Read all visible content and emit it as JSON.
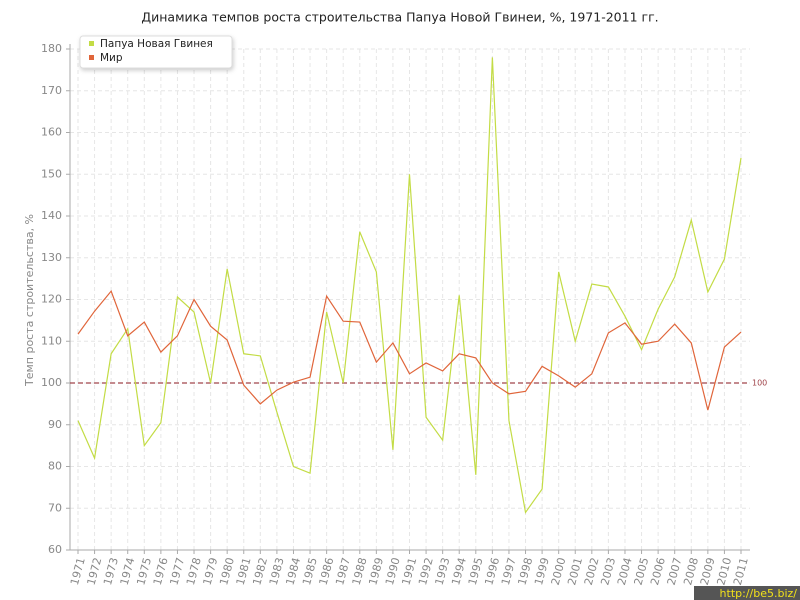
{
  "chart_data": {
    "type": "line",
    "title": "Динамика темпов роста строительства Папуа Новой Гвинеи, %, 1971-2011 гг.",
    "y_label": "Темп роста строительства, %",
    "categories": [
      "1971",
      "1972",
      "1973",
      "1974",
      "1975",
      "1976",
      "1977",
      "1978",
      "1979",
      "1980",
      "1981",
      "1982",
      "1983",
      "1984",
      "1985",
      "1986",
      "1987",
      "1988",
      "1989",
      "1990",
      "1991",
      "1992",
      "1993",
      "1994",
      "1995",
      "1996",
      "1997",
      "1998",
      "1999",
      "2000",
      "2001",
      "2002",
      "2003",
      "2004",
      "2005",
      "2006",
      "2007",
      "2008",
      "2009",
      "2010",
      "2011"
    ],
    "series": [
      {
        "name": "Папуа Новая Гвинея",
        "color": "#c3dc45",
        "values": [
          91,
          82,
          107,
          113,
          85,
          90.5,
          120.6,
          117,
          100,
          127.3,
          107,
          106.5,
          93,
          80,
          78.4,
          117,
          100,
          136.2,
          126.6,
          84,
          150,
          91.8,
          86.3,
          121,
          78,
          178,
          91,
          69,
          74.6,
          126.6,
          110,
          123.7,
          123,
          116,
          108,
          117.7,
          125.4,
          139,
          121.8,
          129.7,
          153.9
        ]
      },
      {
        "name": "Мир",
        "color": "#e0653a",
        "values": [
          111.7,
          117.2,
          122,
          111.3,
          114.6,
          107.4,
          111.3,
          120,
          113.6,
          110.3,
          99.5,
          95,
          98.3,
          100.2,
          101.4,
          120.8,
          114.8,
          114.6,
          105,
          109.6,
          102.2,
          104.8,
          102.9,
          107,
          106,
          100,
          97.4,
          98,
          104,
          101.7,
          99,
          102.2,
          112,
          114.4,
          109.3,
          110,
          114.1,
          109.6,
          93.5,
          108.6,
          112.2
        ]
      }
    ],
    "ylim": [
      60,
      180
    ],
    "yticks": [
      60,
      70,
      80,
      90,
      100,
      110,
      120,
      130,
      140,
      150,
      160,
      170,
      180
    ],
    "grid": true,
    "legend": "top-left",
    "reference_line": {
      "value": 100,
      "color": "#a0444a"
    },
    "watermark": "http://be5.biz/"
  }
}
